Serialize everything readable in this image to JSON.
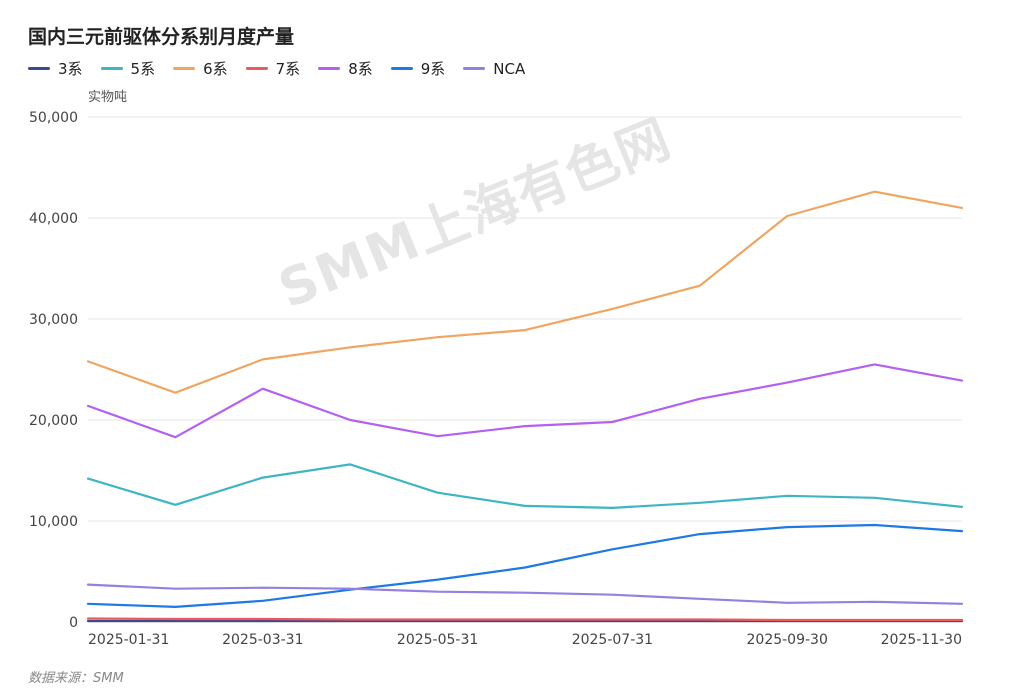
{
  "title": "国内三元前驱体分系别月度产量",
  "unit_label": "实物吨",
  "source": "数据来源：SMM",
  "watermark": "SMM上海有色网",
  "chart_data": {
    "type": "line",
    "title": "国内三元前驱体分系别月度产量",
    "ylabel": "实物吨",
    "xlabel": "",
    "ylim": [
      0,
      50000
    ],
    "grid": true,
    "legend_position": "top-left",
    "x": [
      "2025-01-31",
      "2025-02-28",
      "2025-03-31",
      "2025-04-30",
      "2025-05-31",
      "2025-06-30",
      "2025-07-31",
      "2025-08-31",
      "2025-09-30",
      "2025-10-31",
      "2025-11-30"
    ],
    "x_tick_labels": [
      "2025-01-31",
      "2025-03-31",
      "2025-05-31",
      "2025-07-31",
      "2025-09-30",
      "2025-11-30"
    ],
    "y_ticks": [
      0,
      10000,
      20000,
      30000,
      40000,
      50000
    ],
    "y_tick_labels": [
      "0",
      "10,000",
      "20,000",
      "30,000",
      "40,000",
      "50,000"
    ],
    "series": [
      {
        "name": "3系",
        "color": "#3d4a8a",
        "values": [
          100,
          100,
          100,
          100,
          100,
          100,
          100,
          100,
          100,
          100,
          100
        ]
      },
      {
        "name": "5系",
        "color": "#3fb5c4",
        "values": [
          14200,
          11600,
          14300,
          15600,
          12800,
          11500,
          11300,
          11800,
          12500,
          12300,
          11400
        ]
      },
      {
        "name": "6系",
        "color": "#f0a560",
        "values": [
          25800,
          22700,
          26000,
          27200,
          28200,
          28900,
          31000,
          33300,
          40200,
          42600,
          41000
        ]
      },
      {
        "name": "7系",
        "color": "#e85a60",
        "values": [
          350,
          300,
          300,
          250,
          250,
          250,
          250,
          250,
          200,
          200,
          200
        ]
      },
      {
        "name": "8系",
        "color": "#b460f0",
        "values": [
          21400,
          18300,
          23100,
          20000,
          18400,
          19400,
          19800,
          22100,
          23700,
          25500,
          23900
        ]
      },
      {
        "name": "9系",
        "color": "#1e78e6",
        "values": [
          1800,
          1500,
          2100,
          3200,
          4200,
          5400,
          7200,
          8700,
          9400,
          9600,
          9000
        ]
      },
      {
        "name": "NCA",
        "color": "#9580e0",
        "values": [
          3700,
          3300,
          3400,
          3300,
          3000,
          2900,
          2700,
          2300,
          1900,
          2000,
          1800
        ]
      }
    ]
  }
}
